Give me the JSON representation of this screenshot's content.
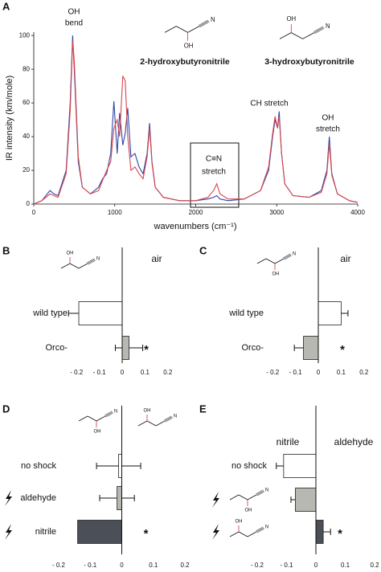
{
  "chart_data": [
    {
      "type": "line",
      "panel": "A",
      "xlabel": "wavenumbers (cm⁻¹)",
      "ylabel": "IR intensity (km/mole)",
      "x": [
        0,
        100,
        200,
        250,
        300,
        400,
        450,
        480,
        500,
        550,
        600,
        700,
        800,
        850,
        900,
        950,
        990,
        1030,
        1060,
        1100,
        1130,
        1160,
        1200,
        1250,
        1300,
        1350,
        1400,
        1430,
        1460,
        1500,
        1600,
        1800,
        2000,
        2150,
        2220,
        2260,
        2300,
        2400,
        2600,
        2800,
        2900,
        2950,
        2980,
        3010,
        3030,
        3060,
        3100,
        3200,
        3400,
        3550,
        3620,
        3650,
        3680,
        3750,
        3900,
        4000
      ],
      "series": [
        {
          "name": "2-hydroxybutyronitrile",
          "color": "#2f45a6",
          "values": [
            0,
            2,
            8,
            6,
            5,
            20,
            60,
            100,
            80,
            25,
            10,
            6,
            10,
            15,
            18,
            30,
            61,
            30,
            54,
            35,
            42,
            57,
            28,
            30,
            22,
            18,
            30,
            48,
            25,
            10,
            4,
            2,
            2,
            3,
            4,
            5,
            3,
            2,
            3,
            8,
            20,
            40,
            50,
            45,
            55,
            30,
            12,
            5,
            4,
            8,
            20,
            40,
            18,
            6,
            2,
            1
          ]
        },
        {
          "name": "3-hydroxybutyronitrile",
          "color": "#d9464a",
          "values": [
            0,
            2,
            6,
            5,
            4,
            18,
            55,
            97,
            85,
            28,
            10,
            6,
            8,
            14,
            20,
            25,
            45,
            50,
            40,
            76,
            73,
            40,
            20,
            22,
            18,
            15,
            28,
            45,
            24,
            10,
            4,
            2,
            2,
            4,
            8,
            12,
            6,
            3,
            3,
            8,
            22,
            42,
            52,
            45,
            52,
            30,
            12,
            5,
            4,
            7,
            18,
            36,
            17,
            6,
            2,
            1
          ]
        }
      ],
      "xlim": [
        0,
        4000
      ],
      "xticks": [
        0,
        1000,
        2000,
        3000,
        4000
      ],
      "ylim": [
        0,
        102
      ],
      "yticks": [
        0,
        20,
        40,
        60,
        80,
        100
      ],
      "annotations": [
        "OH",
        "bend",
        "CH stretch",
        "OH",
        "stretch",
        "C≡N",
        "stretch"
      ],
      "molecules": [
        {
          "oh": "OH",
          "n": "N"
        },
        {
          "oh": "OH",
          "n": "N"
        }
      ]
    },
    {
      "type": "bar",
      "panel": "B",
      "orientation": "horizontal",
      "categories": [
        "wild type",
        "Orco-"
      ],
      "values": [
        -0.19,
        0.03
      ],
      "errors": [
        0.045,
        0.06
      ],
      "colors": [
        "#ffffff",
        "#b6b8b1"
      ],
      "significance": [
        null,
        "*"
      ],
      "xlim": [
        -0.25,
        0.25
      ],
      "xticks": [
        {
          "value": -0.2,
          "label": "- 0.2"
        },
        {
          "value": -0.1,
          "label": "- 0.1"
        },
        0,
        0.1,
        0.2
      ],
      "annotations": [
        "air"
      ],
      "molecules": [
        {
          "oh": "OH",
          "n": "N"
        }
      ]
    },
    {
      "type": "bar",
      "panel": "C",
      "orientation": "horizontal",
      "categories": [
        "wild type",
        "Orco-"
      ],
      "values": [
        0.1,
        -0.065
      ],
      "errors": [
        0.03,
        0.04
      ],
      "colors": [
        "#ffffff",
        "#b6b8b1"
      ],
      "significance": [
        null,
        "*"
      ],
      "xlim": [
        -0.25,
        0.25
      ],
      "xticks": [
        {
          "value": -0.2,
          "label": "- 0.2"
        },
        {
          "value": -0.1,
          "label": "- 0.1"
        },
        0,
        0.1,
        0.2
      ],
      "annotations": [
        "air"
      ],
      "molecules": [
        {
          "oh": "OH",
          "n": "N"
        }
      ]
    },
    {
      "type": "bar",
      "panel": "D",
      "orientation": "horizontal",
      "categories": [
        "no shock",
        "aldehyde",
        "nitrile"
      ],
      "values": [
        -0.01,
        -0.015,
        -0.14
      ],
      "errors": [
        0.07,
        0.055,
        0
      ],
      "colors": [
        "#ffffff",
        "#b6b8b1",
        "#4b4f58"
      ],
      "significance": [
        null,
        null,
        "*"
      ],
      "xlim": [
        -0.2,
        0.2
      ],
      "xticks": [
        {
          "value": -0.2,
          "label": "- 0.2"
        },
        {
          "value": -0.1,
          "label": "- 0.1"
        },
        0,
        0.1,
        0.2
      ],
      "annotations": [],
      "molecules": [
        {
          "oh": "OH",
          "n": "N"
        },
        {
          "oh": "OH",
          "n": "N"
        }
      ]
    },
    {
      "type": "bar",
      "panel": "E",
      "orientation": "horizontal",
      "categories": [
        "no shock",
        null,
        null
      ],
      "values": [
        -0.11,
        -0.07,
        0.025
      ],
      "errors": [
        0.025,
        0.015,
        0.025
      ],
      "colors": [
        "#ffffff",
        "#b6b8b1",
        "#4b4f58"
      ],
      "significance": [
        null,
        null,
        "*"
      ],
      "xlim": [
        -0.2,
        0.2
      ],
      "xticks": [
        {
          "value": -0.2,
          "label": "- 0.2"
        },
        {
          "value": -0.1,
          "label": "- 0.1"
        },
        0,
        0.1,
        0.2
      ],
      "annotations": [
        "nitrile",
        "aldehyde"
      ],
      "molecules": [
        {
          "oh": "OH",
          "n": "N"
        },
        {
          "oh": "OH",
          "n": "N"
        }
      ]
    }
  ]
}
